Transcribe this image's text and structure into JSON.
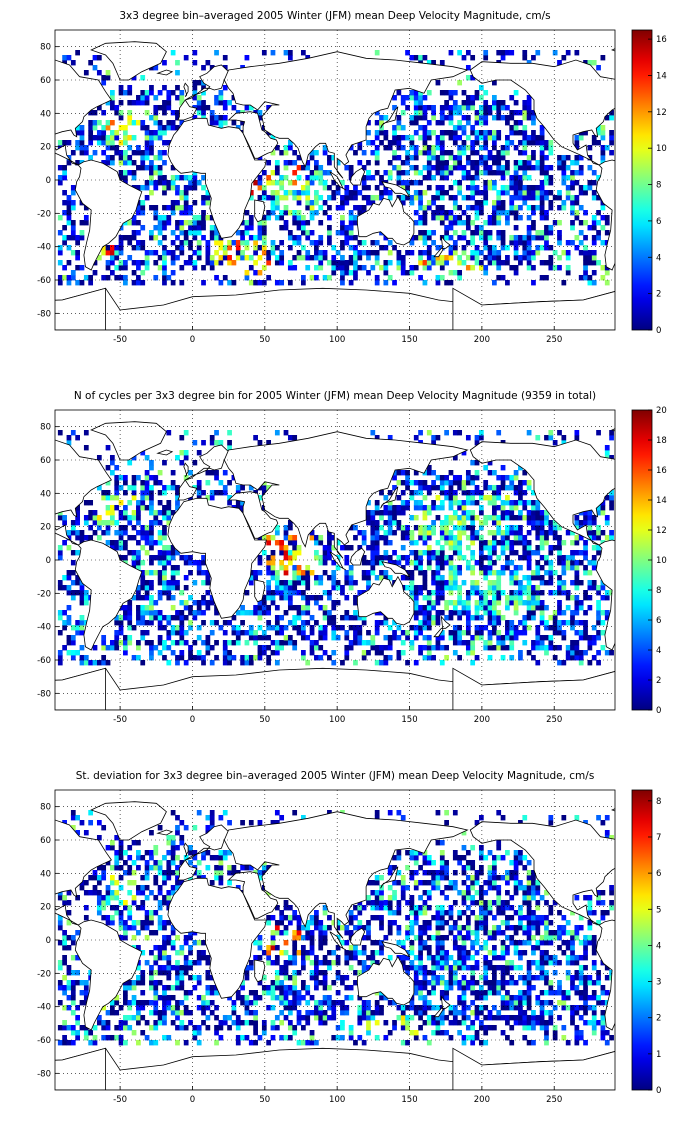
{
  "chart_data": [
    {
      "type": "heatmap",
      "title": "3x3 degree bin–averaged 2005 Winter (JFM) mean Deep Velocity Magnitude, cm/s",
      "xlim": [
        -95,
        292
      ],
      "ylim": [
        -90,
        90
      ],
      "x_ticks": [
        -50,
        0,
        50,
        100,
        150,
        200,
        250
      ],
      "y_ticks": [
        -80,
        -60,
        -40,
        -20,
        0,
        20,
        40,
        60,
        80
      ],
      "grid": "dotted",
      "colormap": "jet",
      "clim": [
        0,
        16.5
      ],
      "colorbar_ticks": [
        0,
        2,
        4,
        6,
        8,
        10,
        12,
        14,
        16
      ],
      "hot_regions": [
        {
          "lon": [
            -60,
            -35
          ],
          "lat": [
            22,
            42
          ],
          "level": 0.72
        },
        {
          "lon": [
            40,
            75
          ],
          "lat": [
            -8,
            8
          ],
          "level": 0.9
        },
        {
          "lon": [
            15,
            55
          ],
          "lat": [
            -58,
            -36
          ],
          "level": 0.8
        },
        {
          "lon": [
            -70,
            -55
          ],
          "lat": [
            -48,
            -35
          ],
          "level": 0.85
        },
        {
          "lon": [
            150,
            200
          ],
          "lat": [
            -58,
            -45
          ],
          "level": 0.75
        },
        {
          "lon": [
            55,
            90
          ],
          "lat": [
            -25,
            5
          ],
          "level": 0.55
        }
      ],
      "seed": 11
    },
    {
      "type": "heatmap",
      "title": "N of cycles per 3x3 degree bin for 2005 Winter (JFM) mean Deep Velocity Magnitude (9359 in total)",
      "xlim": [
        -95,
        292
      ],
      "ylim": [
        -90,
        90
      ],
      "x_ticks": [
        -50,
        0,
        50,
        100,
        150,
        200,
        250
      ],
      "y_ticks": [
        -80,
        -60,
        -40,
        -20,
        0,
        20,
        40,
        60,
        80
      ],
      "grid": "dotted",
      "colormap": "jet",
      "clim": [
        0,
        20
      ],
      "colorbar_ticks": [
        0,
        2,
        4,
        6,
        8,
        10,
        12,
        14,
        16,
        18,
        20
      ],
      "hot_regions": [
        {
          "lon": [
            50,
            85
          ],
          "lat": [
            -10,
            15
          ],
          "level": 0.85
        },
        {
          "lon": [
            -65,
            -40
          ],
          "lat": [
            22,
            38
          ],
          "level": 0.6
        },
        {
          "lon": [
            150,
            220
          ],
          "lat": [
            5,
            40
          ],
          "level": 0.55
        },
        {
          "lon": [
            175,
            240
          ],
          "lat": [
            -30,
            -5
          ],
          "level": 0.5
        }
      ],
      "seed": 23
    },
    {
      "type": "heatmap",
      "title": "St. deviation for 3x3 degree bin–averaged 2005 Winter (JFM) mean Deep Velocity Magnitude, cm/s",
      "xlim": [
        -95,
        292
      ],
      "ylim": [
        -90,
        90
      ],
      "x_ticks": [
        -50,
        0,
        50,
        100,
        150,
        200,
        250
      ],
      "y_ticks": [
        -80,
        -60,
        -40,
        -20,
        0,
        20,
        40,
        60,
        80
      ],
      "grid": "dotted",
      "colormap": "jet",
      "clim": [
        0,
        8.3
      ],
      "colorbar_ticks": [
        0,
        1,
        2,
        3,
        4,
        5,
        6,
        7,
        8
      ],
      "hot_regions": [
        {
          "lon": [
            45,
            75
          ],
          "lat": [
            -8,
            8
          ],
          "level": 0.85
        },
        {
          "lon": [
            -60,
            -40
          ],
          "lat": [
            22,
            38
          ],
          "level": 0.6
        },
        {
          "lon": [
            120,
            160
          ],
          "lat": [
            -58,
            -45
          ],
          "level": 0.6
        },
        {
          "lon": [
            -70,
            -60
          ],
          "lat": [
            -45,
            -38
          ],
          "level": 0.7
        }
      ],
      "seed": 37
    }
  ]
}
